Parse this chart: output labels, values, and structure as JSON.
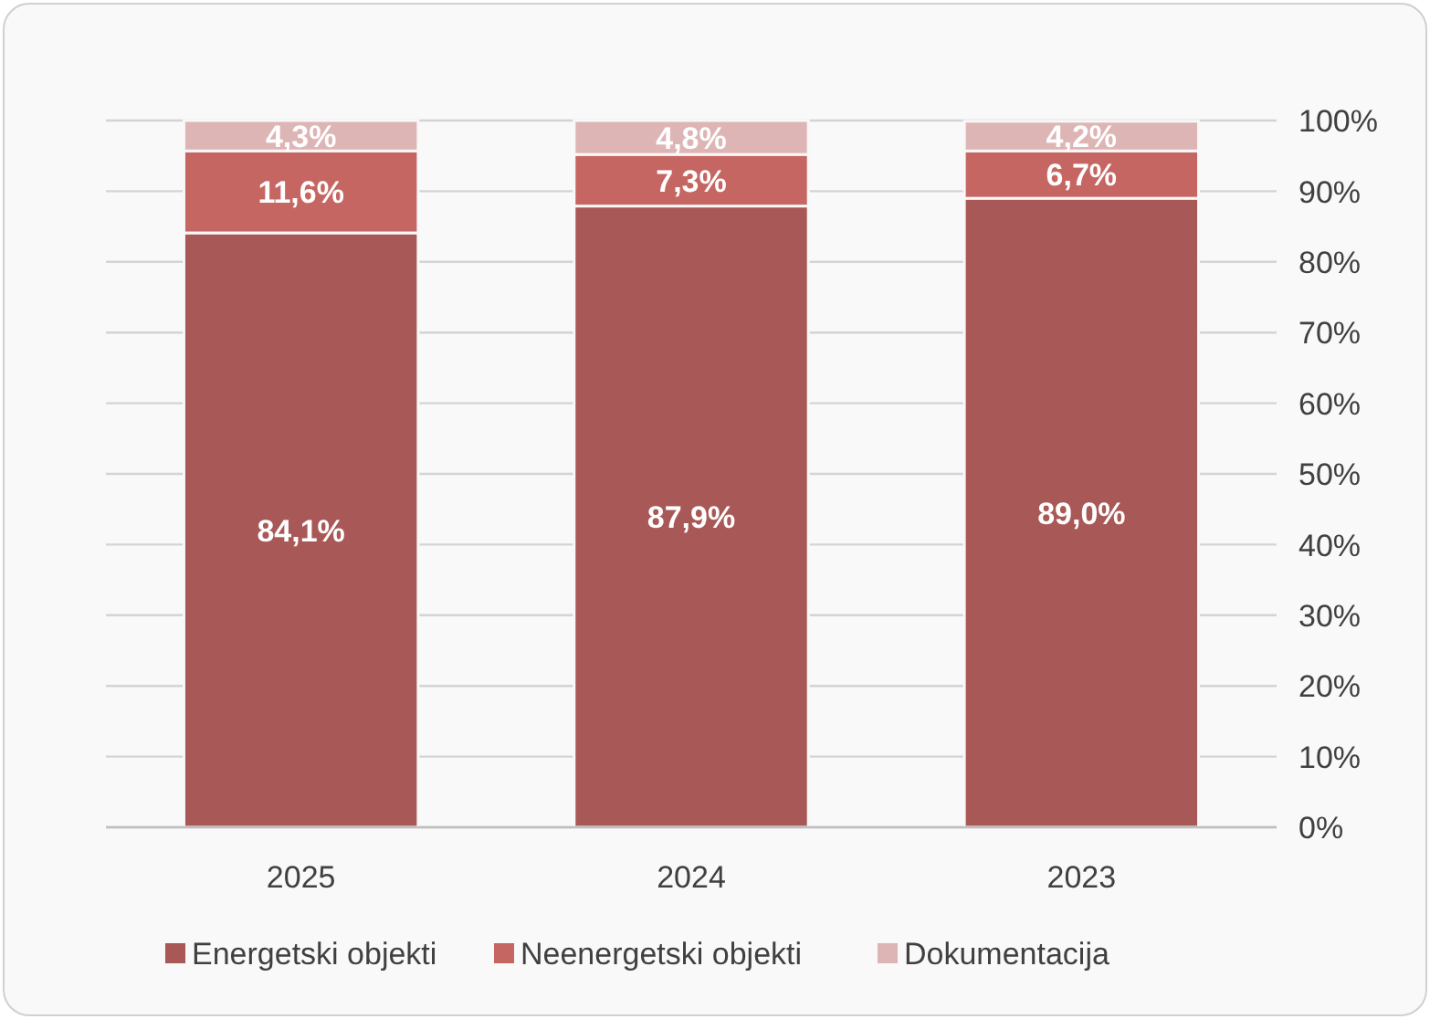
{
  "chart_data": {
    "type": "bar",
    "stacked": true,
    "categories": [
      "2025",
      "2024",
      "2023"
    ],
    "series": [
      {
        "name": "Energetski objekti",
        "color": "#a85856",
        "values": [
          84.1,
          87.9,
          89.0
        ],
        "value_labels": [
          "84,1%",
          "87,9%",
          "89,0%"
        ]
      },
      {
        "name": "Neenergetski objekti",
        "color": "#c66662",
        "values": [
          11.6,
          7.3,
          6.7
        ],
        "value_labels": [
          "11,6%",
          "7,3%",
          "6,7%"
        ]
      },
      {
        "name": "Dokumentacija",
        "color": "#deb5b5",
        "values": [
          4.3,
          4.8,
          4.2
        ],
        "value_labels": [
          "4,3%",
          "4,8%",
          "4,2%"
        ]
      }
    ],
    "ylim": [
      0,
      100
    ],
    "yticks": [
      {
        "value": 0,
        "label": "0%"
      },
      {
        "value": 10,
        "label": "10%"
      },
      {
        "value": 20,
        "label": "20%"
      },
      {
        "value": 30,
        "label": "30%"
      },
      {
        "value": 40,
        "label": "40%"
      },
      {
        "value": 50,
        "label": "50%"
      },
      {
        "value": 60,
        "label": "60%"
      },
      {
        "value": 70,
        "label": "70%"
      },
      {
        "value": 80,
        "label": "80%"
      },
      {
        "value": 90,
        "label": "90%"
      },
      {
        "value": 100,
        "label": "100%"
      }
    ],
    "grid": "y",
    "legend": "bottom"
  }
}
